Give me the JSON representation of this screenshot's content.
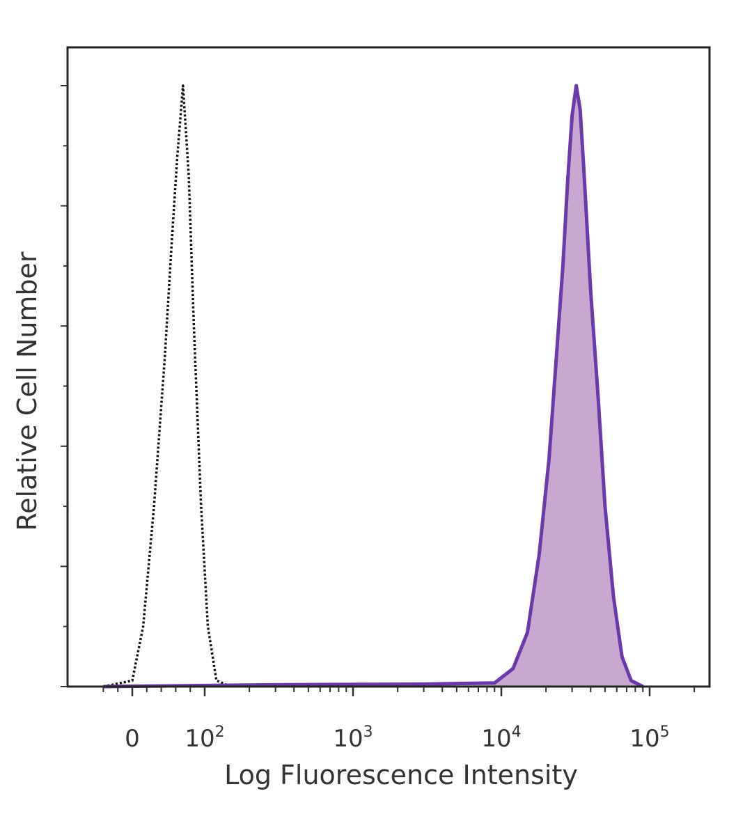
{
  "chart_data": {
    "type": "area",
    "xlabel": "Log Fluorescence Intensity",
    "ylabel": "Relative Cell Number",
    "x_scale": "biexponential",
    "grid": false,
    "legend": "none",
    "x_ticks": [
      {
        "value": 0,
        "label": "0"
      },
      {
        "value": 100,
        "label": "10",
        "exp": "2"
      },
      {
        "value": 1000,
        "label": "10",
        "exp": "3"
      },
      {
        "value": 10000,
        "label": "10",
        "exp": "4"
      },
      {
        "value": 100000,
        "label": "10",
        "exp": "5"
      }
    ],
    "ylim": [
      0,
      100
    ],
    "series": [
      {
        "style": "dotted-outline",
        "color": "#111111",
        "x": [
          -40,
          0,
          15,
          30,
          45,
          55,
          62,
          70,
          78,
          85,
          95,
          105,
          120,
          150
        ],
        "y": [
          0,
          1,
          10,
          30,
          55,
          75,
          88,
          100,
          85,
          60,
          30,
          10,
          1,
          0
        ]
      },
      {
        "style": "filled",
        "color": "#6a3aa8",
        "fill": "#c8a8d0",
        "x": [
          -40,
          300,
          3000,
          9000,
          12000,
          15000,
          18000,
          21000,
          24000,
          26000,
          28000,
          30000,
          32000,
          34000,
          36000,
          40000,
          45000,
          50000,
          57000,
          65000,
          75000,
          90000
        ],
        "y": [
          0,
          0.3,
          0.4,
          0.6,
          3,
          9,
          22,
          38,
          58,
          70,
          84,
          95,
          100,
          96,
          86,
          66,
          48,
          30,
          15,
          5,
          1,
          0
        ]
      }
    ]
  }
}
